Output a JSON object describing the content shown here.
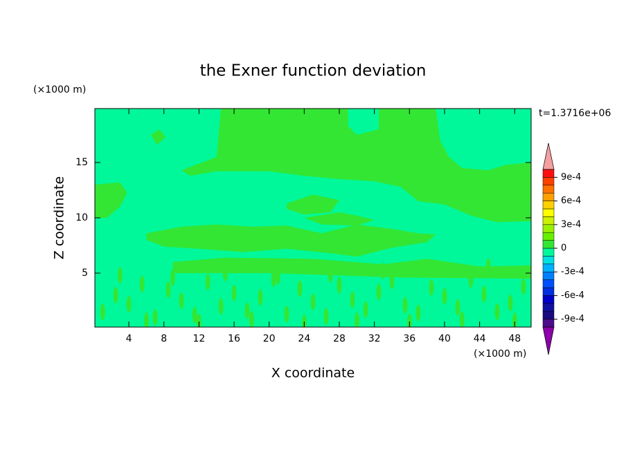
{
  "chart_data": {
    "type": "contourf",
    "title": "the Exner function deviation",
    "x_label": "X coordinate",
    "y_label": "Z coordinate",
    "x_unit": "(×1000 m)",
    "y_unit": "(×1000 m)",
    "time_label": "t=1.3716e+06",
    "xlim": [
      0.125,
      49.875
    ],
    "ylim": [
      0.125,
      19.875
    ],
    "xticks": [
      4,
      8,
      12,
      16,
      20,
      24,
      28,
      32,
      36,
      40,
      44,
      48
    ],
    "yticks": [
      5,
      10,
      15
    ],
    "background_level": -5e-05,
    "regions": [
      {
        "level": 5e-05,
        "x": [
          14.5,
          39,
          39.5,
          40.5,
          42,
          45,
          47,
          49.875,
          49.875,
          46,
          43,
          40,
          37,
          35,
          32,
          28,
          24,
          20,
          14,
          11,
          10,
          14
        ],
        "y": [
          19.875,
          19.875,
          17,
          15.5,
          14.5,
          14.3,
          14.8,
          15,
          9.7,
          9.6,
          10.2,
          11.2,
          11.5,
          12.8,
          13.3,
          13.5,
          13.8,
          14.2,
          14.2,
          13.8,
          14.3,
          15.5
        ]
      },
      {
        "level": -5e-05,
        "x": [
          29,
          32.5,
          32.5,
          30,
          29
        ],
        "y": [
          19.875,
          19.875,
          18,
          17.5,
          18.3
        ]
      },
      {
        "level": 5e-05,
        "x": [
          0.125,
          3,
          3.8,
          3,
          1.5,
          0.125
        ],
        "y": [
          13,
          13.2,
          12.3,
          11,
          10,
          10
        ]
      },
      {
        "level": 5e-05,
        "x": [
          6.5,
          7.5,
          8.2,
          7.2
        ],
        "y": [
          17.5,
          18,
          17.3,
          16.6
        ]
      },
      {
        "level": 5e-05,
        "x": [
          22,
          25,
          28,
          27,
          24,
          22
        ],
        "y": [
          11.3,
          12.1,
          11.6,
          10.5,
          10.3,
          10.8
        ]
      },
      {
        "level": 5e-05,
        "x": [
          6,
          10,
          14,
          18,
          22,
          26,
          30,
          34,
          37,
          39,
          38,
          34,
          30,
          27,
          22,
          17,
          12,
          8,
          6
        ],
        "y": [
          8.6,
          9.2,
          9.4,
          9.2,
          9.3,
          8.6,
          9.4,
          9,
          8.6,
          8.5,
          7.8,
          7.3,
          6.5,
          6.8,
          7.2,
          6.9,
          7.2,
          7.4,
          8
        ]
      },
      {
        "level": 5e-05,
        "x": [
          24,
          28,
          30,
          32,
          30,
          26
        ],
        "y": [
          10,
          10.5,
          10.2,
          9.8,
          9.3,
          9.4
        ]
      },
      {
        "level": 5e-05,
        "x": [
          9,
          15,
          25,
          33,
          38,
          44,
          49.875,
          49.875,
          35,
          20,
          9
        ],
        "y": [
          6,
          6.4,
          6.3,
          5.8,
          6.3,
          5.6,
          5.7,
          4.5,
          4.6,
          5,
          5
        ]
      }
    ],
    "streaks": {
      "level": 5e-05,
      "x": [
        1,
        2.5,
        4,
        5.5,
        7,
        8.5,
        10,
        11.5,
        13,
        14.5,
        16,
        17.5,
        19,
        20.5,
        22,
        23.5,
        25,
        26.5,
        28,
        29.5,
        31,
        32.5,
        34,
        35.5,
        37,
        38.5,
        40,
        41.5,
        43,
        44.5,
        46,
        47.5,
        49,
        3,
        9,
        15,
        21,
        27,
        33,
        39,
        45,
        6,
        12,
        18,
        24,
        30,
        36,
        42,
        48
      ],
      "y": [
        1.5,
        3,
        2.2,
        4,
        1,
        3.5,
        2.5,
        1.2,
        4.2,
        2,
        3.2,
        1.6,
        2.8,
        4.5,
        1.3,
        3.6,
        2.4,
        1.1,
        3.9,
        2.6,
        1.7,
        3.3,
        4.3,
        2.1,
        1.4,
        3.7,
        2.9,
        1.9,
        4.4,
        3.1,
        1.5,
        2.3,
        3.8,
        4.8,
        4.6,
        5,
        4.7,
        4.9,
        5.2,
        5.4,
        5.6,
        0.7,
        0.6,
        0.8,
        0.5,
        0.7,
        0.6,
        0.8,
        0.7
      ]
    },
    "colorbar": {
      "levels": [
        -0.001,
        -0.0009,
        -0.0008,
        -0.0007,
        -0.0006,
        -0.0005,
        -0.0004,
        -0.0003,
        -0.0002,
        -0.0001,
        0,
        0.0001,
        0.0002,
        0.0003,
        0.0004,
        0.0005,
        0.0006,
        0.0007,
        0.0008,
        0.0009,
        0.001
      ],
      "colors": [
        "#4b0c8c",
        "#1a0a80",
        "#1010a0",
        "#0000c8",
        "#0030e0",
        "#0050ff",
        "#0080ff",
        "#00b0ff",
        "#00e0e0",
        "#00f89a",
        "#33e633",
        "#66f000",
        "#99f000",
        "#ccf000",
        "#ffff00",
        "#ffd000",
        "#ffa000",
        "#ff7000",
        "#ff4000",
        "#ff1010"
      ],
      "extend_low_color": "#8b00a8",
      "extend_high_color": "#f4a0a0",
      "ticks": [
        {
          "value": 0.0009,
          "label": "9e-4"
        },
        {
          "value": 0.0006,
          "label": "6e-4"
        },
        {
          "value": 0.0003,
          "label": "3e-4"
        },
        0,
        {
          "value": -0.0003,
          "label": "-3e-4"
        },
        {
          "value": -0.0006,
          "label": "-6e-4"
        },
        {
          "value": -0.0009,
          "label": "-9e-4"
        }
      ]
    }
  }
}
